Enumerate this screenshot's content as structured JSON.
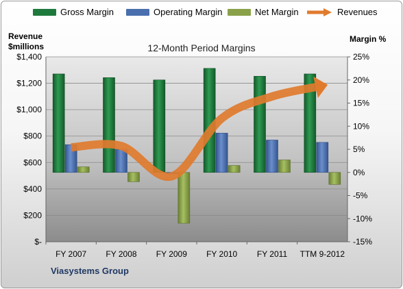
{
  "legend": [
    {
      "label": "Gross Margin",
      "color": "#1e7a3c",
      "kind": "bar"
    },
    {
      "label": "Operating Margin",
      "color": "#4a6fae",
      "kind": "bar"
    },
    {
      "label": "Net Margin",
      "color": "#8aa14a",
      "kind": "bar"
    },
    {
      "label": "Revenues",
      "color": "#e07b2e",
      "kind": "arrow"
    }
  ],
  "left_axis_title_line1": "Revenue",
  "left_axis_title_line2": "$millions",
  "right_axis_title": "Margin %",
  "footer": "Viasystems Group",
  "chart_data": {
    "type": "bar",
    "title": "12-Month Period Margins",
    "categories": [
      "FY 2007",
      "FY 2008",
      "FY 2009",
      "FY 2010",
      "FY 2011",
      "TTM 9-2012"
    ],
    "series": [
      {
        "name": "Gross Margin",
        "axis": "right",
        "values": [
          21.3,
          20.5,
          20.0,
          22.5,
          20.8,
          21.3
        ]
      },
      {
        "name": "Operating Margin",
        "axis": "right",
        "values": [
          6.0,
          5.0,
          -0.3,
          8.5,
          7.0,
          6.5
        ]
      },
      {
        "name": "Net Margin",
        "axis": "right",
        "values": [
          1.2,
          -2.0,
          -11.0,
          1.5,
          2.7,
          -2.6
        ]
      },
      {
        "name": "Revenues",
        "axis": "left",
        "type": "line",
        "values": [
          715,
          725,
          495,
          935,
          1100,
          1180
        ]
      }
    ],
    "left_axis": {
      "min": 0,
      "max": 1400,
      "step": 200,
      "ticks": [
        "$-",
        "$200",
        "$400",
        "$600",
        "$800",
        "$1,000",
        "$1,200",
        "$1,400"
      ]
    },
    "right_axis": {
      "min": -15,
      "max": 25,
      "step": 5,
      "ticks": [
        "-15%",
        "-10%",
        "-5%",
        "0%",
        "5%",
        "10%",
        "15%",
        "20%",
        "25%"
      ]
    }
  }
}
